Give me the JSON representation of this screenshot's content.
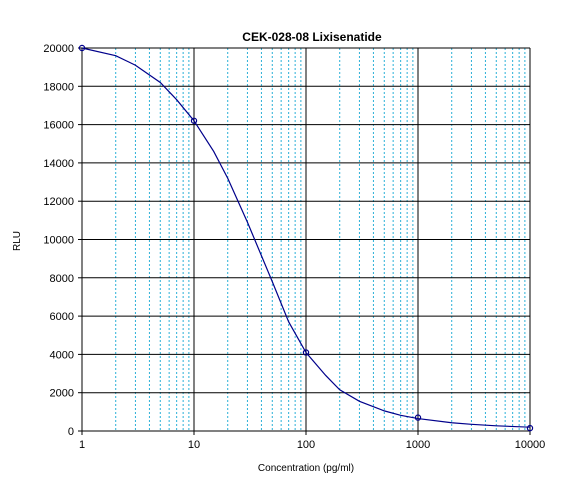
{
  "chart_data": {
    "type": "scatter",
    "title": "CEK-028-08 Lixisenatide",
    "xlabel": "Concentration (pg/ml)",
    "ylabel": "RLU",
    "x_scale": "log",
    "xlim": [
      1,
      10000
    ],
    "ylim": [
      0,
      20000
    ],
    "x_ticks": [
      1,
      10,
      100,
      1000,
      10000
    ],
    "x_tick_labels": [
      "1",
      "10",
      "100",
      "1000",
      "10000"
    ],
    "y_ticks": [
      0,
      2000,
      4000,
      6000,
      8000,
      10000,
      12000,
      14000,
      16000,
      18000,
      20000
    ],
    "y_tick_labels": [
      "0",
      "2000",
      "4000",
      "6000",
      "8000",
      "10000",
      "12000",
      "14000",
      "16000",
      "18000",
      "20000"
    ],
    "grid": true,
    "series": [
      {
        "kind": "points",
        "x": [
          1,
          10,
          100,
          1000,
          10000
        ],
        "y": [
          20000,
          16200,
          4100,
          700,
          150
        ]
      },
      {
        "kind": "fitted-curve",
        "x": [
          1,
          2,
          3,
          5,
          7,
          10,
          15,
          20,
          30,
          50,
          70,
          100,
          150,
          200,
          300,
          500,
          700,
          1000,
          2000,
          3000,
          5000,
          10000
        ],
        "y": [
          20000,
          19600,
          19100,
          18200,
          17300,
          16200,
          14600,
          13200,
          10900,
          7800,
          5700,
          4100,
          2900,
          2150,
          1550,
          1050,
          820,
          650,
          430,
          350,
          270,
          200
        ]
      }
    ],
    "colors": {
      "curve": "#00008b",
      "points": "#00008b",
      "minor_grid": "#2bb0d8",
      "major_grid": "#000000"
    }
  }
}
